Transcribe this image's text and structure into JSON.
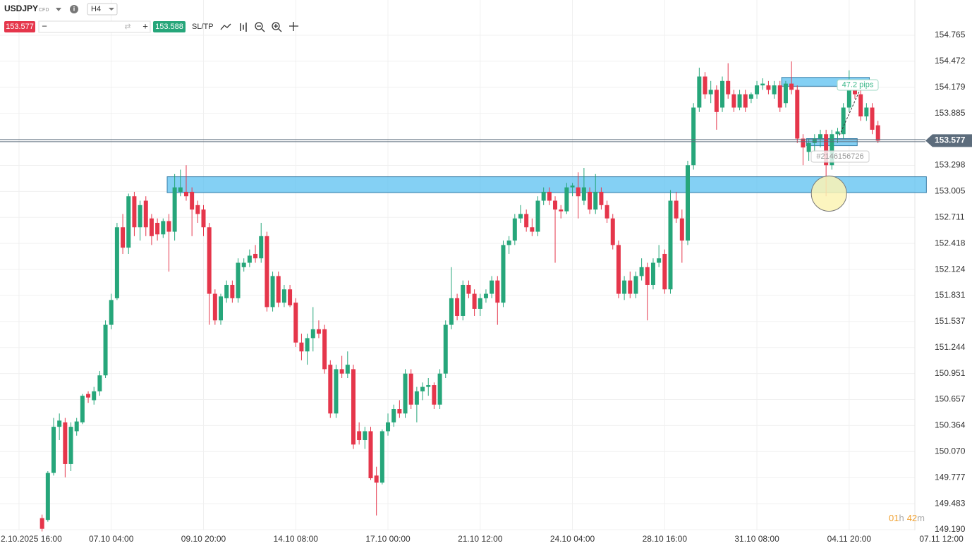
{
  "toolbar": {
    "symbol": "USDJPY",
    "instrument_kind": "CFD",
    "timeframe": "H4",
    "bid": 153.577,
    "ask": 153.588,
    "sltp": "SL/TP"
  },
  "chart_data": {
    "type": "candlestick",
    "open": [
      149.32,
      149.3,
      149.83,
      150.35,
      150.4,
      149.93,
      150.3,
      150.4,
      150.72,
      150.65,
      150.75,
      150.93,
      151.5,
      151.8,
      152.6,
      152.37,
      152.95,
      152.6,
      152.9,
      152.7,
      152.65,
      152.52,
      152.67,
      152.55,
      153.0,
      153.0,
      153.0,
      152.85,
      152.8,
      152.6,
      151.85,
      151.55,
      151.8,
      151.95,
      151.8,
      152.15,
      152.2,
      152.3,
      152.25,
      152.5,
      151.7,
      152.05,
      151.75,
      151.9,
      151.75,
      151.3,
      151.2,
      151.35,
      151.45,
      151.45,
      151.05,
      150.5,
      151.0,
      150.95,
      151.0,
      150.3,
      150.2,
      150.3,
      149.8,
      149.72,
      150.3,
      150.4,
      150.55,
      150.5,
      150.95,
      150.6,
      150.75,
      150.8,
      150.82,
      150.6,
      150.95,
      151.5,
      151.8,
      151.6,
      151.95,
      151.85,
      151.68,
      151.8,
      151.85,
      152.0,
      151.75,
      152.4,
      152.45,
      152.7,
      152.75,
      152.6,
      152.55,
      152.9,
      153.0,
      152.9,
      152.8,
      152.78,
      153.05,
      153.05,
      152.9,
      153.0,
      152.8,
      153.0,
      152.85,
      152.7,
      152.4,
      151.85,
      152.0,
      151.85,
      152.05,
      152.15,
      151.95,
      152.2,
      152.3,
      151.9,
      152.9,
      152.7,
      152.45,
      153.3,
      153.95,
      154.3,
      154.1,
      154.15,
      153.95,
      154.25,
      154.1,
      153.95,
      154.1,
      154.05,
      154.1,
      154.2,
      154.2,
      154.1,
      154.2,
      154.0,
      154.22,
      154.15,
      153.6,
      153.45,
      153.55,
      153.6,
      153.65,
      153.3,
      153.65,
      153.65,
      153.95,
      154.15,
      154.1,
      153.85,
      153.95,
      153.75
    ],
    "high": [
      149.36,
      149.85,
      150.45,
      150.5,
      150.45,
      150.4,
      150.45,
      150.72,
      150.75,
      150.8,
      150.98,
      151.55,
      151.85,
      152.65,
      152.75,
      152.98,
      153.0,
      152.9,
      152.95,
      152.75,
      152.7,
      152.7,
      152.75,
      153.2,
      153.25,
      153.3,
      153.05,
      152.9,
      152.85,
      152.65,
      151.9,
      151.85,
      152.0,
      152.0,
      152.25,
      152.25,
      152.35,
      152.4,
      152.65,
      152.55,
      152.1,
      152.1,
      151.95,
      151.95,
      151.8,
      151.4,
      151.4,
      151.7,
      151.55,
      151.5,
      151.1,
      151.05,
      151.15,
      151.2,
      151.05,
      150.4,
      150.35,
      150.35,
      149.9,
      150.32,
      150.5,
      150.6,
      150.65,
      151.0,
      151.0,
      150.8,
      150.85,
      150.9,
      150.85,
      151.0,
      151.55,
      152.15,
      151.85,
      152.0,
      152.0,
      151.9,
      151.85,
      151.9,
      152.05,
      152.05,
      152.45,
      152.5,
      152.75,
      152.85,
      152.8,
      152.7,
      152.95,
      153.05,
      153.05,
      152.95,
      152.85,
      153.1,
      153.1,
      153.22,
      153.27,
      153.05,
      153.2,
      153.05,
      152.9,
      152.75,
      152.45,
      152.05,
      152.1,
      152.1,
      152.25,
      152.2,
      152.25,
      152.4,
      152.35,
      153.02,
      153.0,
      152.8,
      153.35,
      154.0,
      154.4,
      154.35,
      154.25,
      154.2,
      154.3,
      154.45,
      154.15,
      154.15,
      154.15,
      154.12,
      154.25,
      154.28,
      154.25,
      154.25,
      154.25,
      154.25,
      154.47,
      154.2,
      153.65,
      153.6,
      153.65,
      153.7,
      153.7,
      153.7,
      153.72,
      154.0,
      154.37,
      154.2,
      154.15,
      154.0,
      154.0,
      153.8
    ],
    "low": [
      149.17,
      149.28,
      149.8,
      150.2,
      149.78,
      149.85,
      150.25,
      150.38,
      150.62,
      150.6,
      150.7,
      150.9,
      151.45,
      151.78,
      152.3,
      152.3,
      152.5,
      152.45,
      152.5,
      152.4,
      152.45,
      152.48,
      152.1,
      152.45,
      152.95,
      152.9,
      152.5,
      152.65,
      152.5,
      151.5,
      151.5,
      151.5,
      151.75,
      151.75,
      151.75,
      152.1,
      152.15,
      152.2,
      152.2,
      151.65,
      151.65,
      151.7,
      151.7,
      151.7,
      151.25,
      151.1,
      151.05,
      151.2,
      151.35,
      150.95,
      150.45,
      150.45,
      150.9,
      150.9,
      150.1,
      150.15,
      150.1,
      149.75,
      149.35,
      149.7,
      150.25,
      150.35,
      150.45,
      150.45,
      150.55,
      150.4,
      150.65,
      150.7,
      150.55,
      150.55,
      150.9,
      151.45,
      151.55,
      151.55,
      151.8,
      151.6,
      151.6,
      151.75,
      151.8,
      151.5,
      151.7,
      152.3,
      152.4,
      152.65,
      152.55,
      152.5,
      152.5,
      152.85,
      152.85,
      152.2,
      152.7,
      152.75,
      152.95,
      152.7,
      152.85,
      152.75,
      152.75,
      152.8,
      152.65,
      152.35,
      151.8,
      151.78,
      151.8,
      151.8,
      152.0,
      151.55,
      151.9,
      152.15,
      151.85,
      151.85,
      152.65,
      152.2,
      152.4,
      153.25,
      153.9,
      154.05,
      154.0,
      153.7,
      153.9,
      154.05,
      153.9,
      153.92,
      153.9,
      154.0,
      154.05,
      154.15,
      154.1,
      154.05,
      153.9,
      153.95,
      154.1,
      153.55,
      153.3,
      153.35,
      153.45,
      153.5,
      152.95,
      153.25,
      153.55,
      153.6,
      153.9,
      154.05,
      153.8,
      153.8,
      153.65,
      153.55
    ],
    "close": [
      149.2,
      149.83,
      150.35,
      150.42,
      149.93,
      150.35,
      150.41,
      150.7,
      150.68,
      150.75,
      150.93,
      151.5,
      151.78,
      152.6,
      152.37,
      152.95,
      152.6,
      152.85,
      152.6,
      152.5,
      152.52,
      152.67,
      152.55,
      153.05,
      153.05,
      152.95,
      152.8,
      152.75,
      152.6,
      151.85,
      151.55,
      151.82,
      151.95,
      151.8,
      152.2,
      152.2,
      152.28,
      152.25,
      152.5,
      151.7,
      152.05,
      151.75,
      151.9,
      151.72,
      151.3,
      151.2,
      151.35,
      151.45,
      151.4,
      151.0,
      150.5,
      151.0,
      150.95,
      151.05,
      150.15,
      150.2,
      150.3,
      149.77,
      149.72,
      150.3,
      150.4,
      150.55,
      150.5,
      150.95,
      150.6,
      150.75,
      150.8,
      150.82,
      150.6,
      150.95,
      151.5,
      151.8,
      151.6,
      151.95,
      151.85,
      151.68,
      151.8,
      151.85,
      152.0,
      151.75,
      152.4,
      152.45,
      152.7,
      152.75,
      152.6,
      152.55,
      152.9,
      153.0,
      152.9,
      152.8,
      152.78,
      153.05,
      153.07,
      152.95,
      153.05,
      152.8,
      153.0,
      152.85,
      152.7,
      152.4,
      151.85,
      152.0,
      151.85,
      152.05,
      152.15,
      151.95,
      152.2,
      152.25,
      151.9,
      152.9,
      152.7,
      152.45,
      153.3,
      153.95,
      154.3,
      154.1,
      154.15,
      153.9,
      154.25,
      154.1,
      153.95,
      154.1,
      153.95,
      154.1,
      154.2,
      154.22,
      154.15,
      154.2,
      153.95,
      154.22,
      154.15,
      153.6,
      153.5,
      153.55,
      153.6,
      153.65,
      153.3,
      153.65,
      153.68,
      153.95,
      154.15,
      154.1,
      153.85,
      153.95,
      153.7,
      153.577
    ],
    "up_color": "#26a67a",
    "down_color": "#e5364b",
    "ylim": [
      149.182,
      155.163
    ],
    "yticks": [
      154.765,
      154.472,
      154.179,
      153.885,
      153.298,
      153.005,
      152.711,
      152.418,
      152.124,
      151.831,
      151.537,
      151.244,
      150.951,
      150.657,
      150.364,
      {
        "value": 150.07,
        "label": "150.070"
      },
      149.777,
      149.483,
      {
        "value": 149.19,
        "label": "149.190"
      }
    ],
    "xlim": [
      -7.3,
      151.4
    ],
    "xticks": [
      {
        "value": -4,
        "label": "2.10.2025 16:00"
      },
      {
        "value": 12,
        "label": "07.10 04:00"
      },
      {
        "value": 28,
        "label": "09.10 20:00"
      },
      {
        "value": 44,
        "label": "14.10 08:00"
      },
      {
        "value": 60,
        "label": "17.10 00:00"
      },
      {
        "value": 76,
        "label": "21.10 12:00"
      },
      {
        "value": 92,
        "label": "24.10 04:00"
      },
      {
        "value": 108,
        "label": "28.10 16:00"
      },
      {
        "value": 124,
        "label": "31.10 08:00"
      },
      {
        "value": 140,
        "label": "04.11 20:00"
      },
      {
        "value": 156,
        "label": "07.11 12:00"
      }
    ],
    "grid": true,
    "price_line": 153.577,
    "zones": [
      {
        "x": [
          21.7,
          153.4
        ],
        "y": [
          152.99,
          153.17
        ]
      },
      {
        "x": [
          128.3,
          143.5
        ],
        "y": [
          154.19,
          154.29
        ]
      },
      {
        "x": [
          132.6,
          141.4
        ],
        "y": [
          153.52,
          153.6
        ]
      }
    ],
    "marker": {
      "x": 136.5,
      "y": 152.98
    },
    "annotations": [
      "47.2 pips",
      "#2146156726"
    ],
    "timer": [
      "01",
      "h",
      "42",
      "m"
    ]
  }
}
